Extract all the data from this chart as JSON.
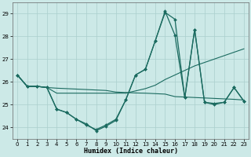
{
  "xlabel": "Humidex (Indice chaleur)",
  "xlim": [
    -0.5,
    23.5
  ],
  "ylim": [
    23.5,
    29.5
  ],
  "yticks": [
    24,
    25,
    26,
    27,
    28,
    29
  ],
  "xticks": [
    0,
    1,
    2,
    3,
    4,
    5,
    6,
    7,
    8,
    9,
    10,
    11,
    12,
    13,
    14,
    15,
    16,
    17,
    18,
    19,
    20,
    21,
    22,
    23
  ],
  "bg_color": "#cce9e7",
  "grid_color": "#aacfcd",
  "line_color": "#1b6b60",
  "line1_y": [
    26.3,
    25.8,
    25.8,
    25.75,
    25.72,
    25.7,
    25.68,
    25.66,
    25.64,
    25.62,
    25.55,
    25.53,
    25.51,
    25.5,
    25.48,
    25.46,
    25.35,
    25.33,
    25.31,
    25.29,
    25.27,
    25.25,
    25.23,
    25.2
  ],
  "line2_y": [
    26.3,
    25.8,
    25.8,
    25.75,
    24.8,
    24.65,
    24.35,
    24.15,
    23.85,
    24.05,
    24.3,
    25.2,
    26.3,
    26.55,
    27.8,
    29.1,
    28.05,
    25.3,
    28.3,
    25.1,
    25.05,
    25.1,
    25.75,
    25.15
  ],
  "line3_y": [
    26.3,
    25.8,
    25.8,
    25.75,
    24.8,
    24.65,
    24.35,
    24.1,
    23.9,
    24.1,
    24.35,
    25.2,
    26.3,
    26.55,
    27.8,
    29.05,
    28.75,
    25.3,
    28.3,
    25.1,
    25.0,
    25.1,
    25.75,
    25.15
  ],
  "line4_y": [
    26.3,
    25.8,
    25.8,
    25.75,
    25.5,
    25.5,
    25.5,
    25.5,
    25.5,
    25.5,
    25.5,
    25.5,
    25.6,
    25.7,
    25.85,
    26.1,
    26.3,
    26.5,
    26.7,
    26.85,
    27.0,
    27.15,
    27.3,
    27.45
  ]
}
